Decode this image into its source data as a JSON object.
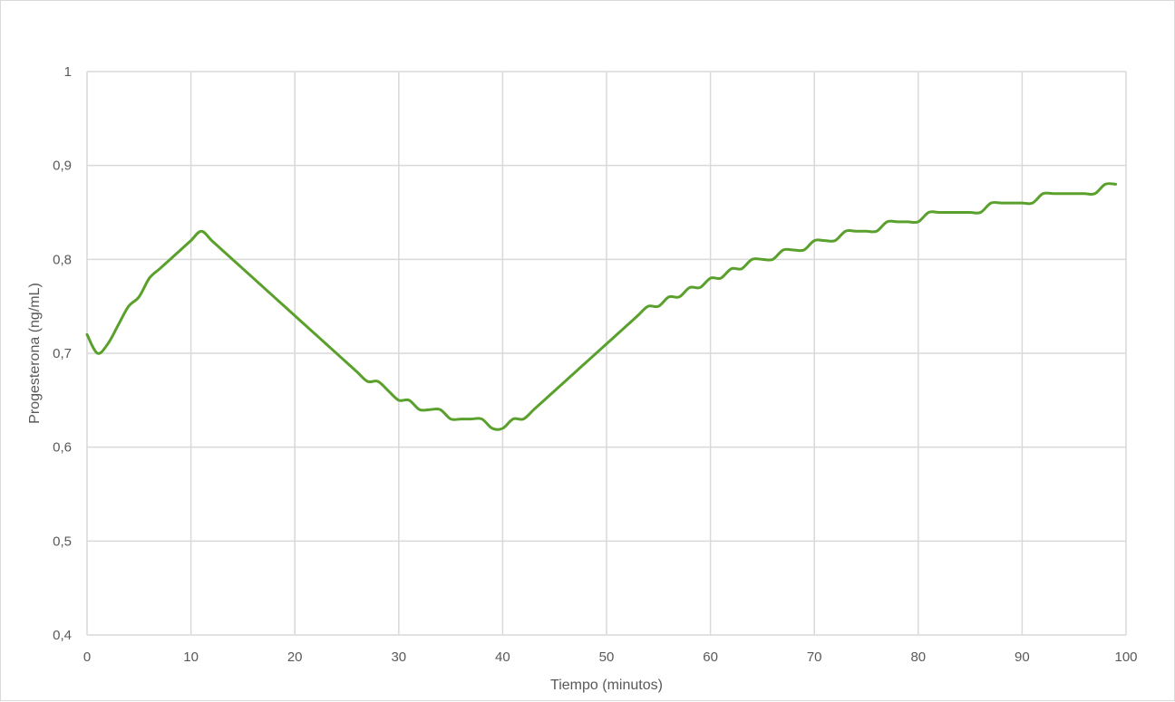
{
  "chart_data": {
    "type": "line",
    "title": "",
    "xlabel": "Tiempo (minutos)",
    "ylabel": "Progesterona (ng/mL)",
    "xlim": [
      0,
      100
    ],
    "ylim": [
      0.4,
      1
    ],
    "x_ticks": [
      0,
      10,
      20,
      30,
      40,
      50,
      60,
      70,
      80,
      90,
      100
    ],
    "x_tick_labels": [
      "0",
      "10",
      "20",
      "30",
      "40",
      "50",
      "60",
      "70",
      "80",
      "90",
      "100"
    ],
    "y_ticks": [
      0.4,
      0.5,
      0.6,
      0.7,
      0.8,
      0.9,
      1
    ],
    "y_tick_labels": [
      "0,4",
      "0,5",
      "0,6",
      "0,7",
      "0,8",
      "0,9",
      "1"
    ],
    "grid": true,
    "line_color": "#5aa02c",
    "series": [
      {
        "x": [
          0,
          1,
          2,
          3,
          4,
          5,
          6,
          7,
          8,
          9,
          10,
          11,
          12,
          13,
          14,
          15,
          16,
          17,
          18,
          19,
          20,
          21,
          22,
          23,
          24,
          25,
          26,
          27,
          28,
          29,
          30,
          31,
          32,
          33,
          34,
          35,
          36,
          37,
          38,
          39,
          40,
          41,
          42,
          43,
          44,
          45,
          46,
          47,
          48,
          49,
          50,
          51,
          52,
          53,
          54,
          55,
          56,
          57,
          58,
          59,
          60,
          61,
          62,
          63,
          64,
          65,
          66,
          67,
          68,
          69,
          70,
          71,
          72,
          73,
          74,
          75,
          76,
          77,
          78,
          79,
          80,
          81,
          82,
          83,
          84,
          85,
          86,
          87,
          88,
          89,
          90,
          91,
          92,
          93,
          94,
          95,
          96,
          97,
          98,
          99
        ],
        "values": [
          0.72,
          0.7,
          0.71,
          0.73,
          0.75,
          0.76,
          0.78,
          0.79,
          0.8,
          0.81,
          0.82,
          0.83,
          0.82,
          0.81,
          0.8,
          0.79,
          0.78,
          0.77,
          0.76,
          0.75,
          0.74,
          0.73,
          0.72,
          0.71,
          0.7,
          0.69,
          0.68,
          0.67,
          0.67,
          0.66,
          0.65,
          0.65,
          0.64,
          0.64,
          0.64,
          0.63,
          0.63,
          0.63,
          0.63,
          0.62,
          0.62,
          0.63,
          0.63,
          0.64,
          0.65,
          0.66,
          0.67,
          0.68,
          0.69,
          0.7,
          0.71,
          0.72,
          0.73,
          0.74,
          0.75,
          0.75,
          0.76,
          0.76,
          0.77,
          0.77,
          0.78,
          0.78,
          0.79,
          0.79,
          0.8,
          0.8,
          0.8,
          0.81,
          0.81,
          0.81,
          0.82,
          0.82,
          0.82,
          0.83,
          0.83,
          0.83,
          0.83,
          0.84,
          0.84,
          0.84,
          0.84,
          0.85,
          0.85,
          0.85,
          0.85,
          0.85,
          0.85,
          0.86,
          0.86,
          0.86,
          0.86,
          0.86,
          0.87,
          0.87,
          0.87,
          0.87,
          0.87,
          0.87,
          0.88,
          0.88
        ]
      }
    ]
  }
}
